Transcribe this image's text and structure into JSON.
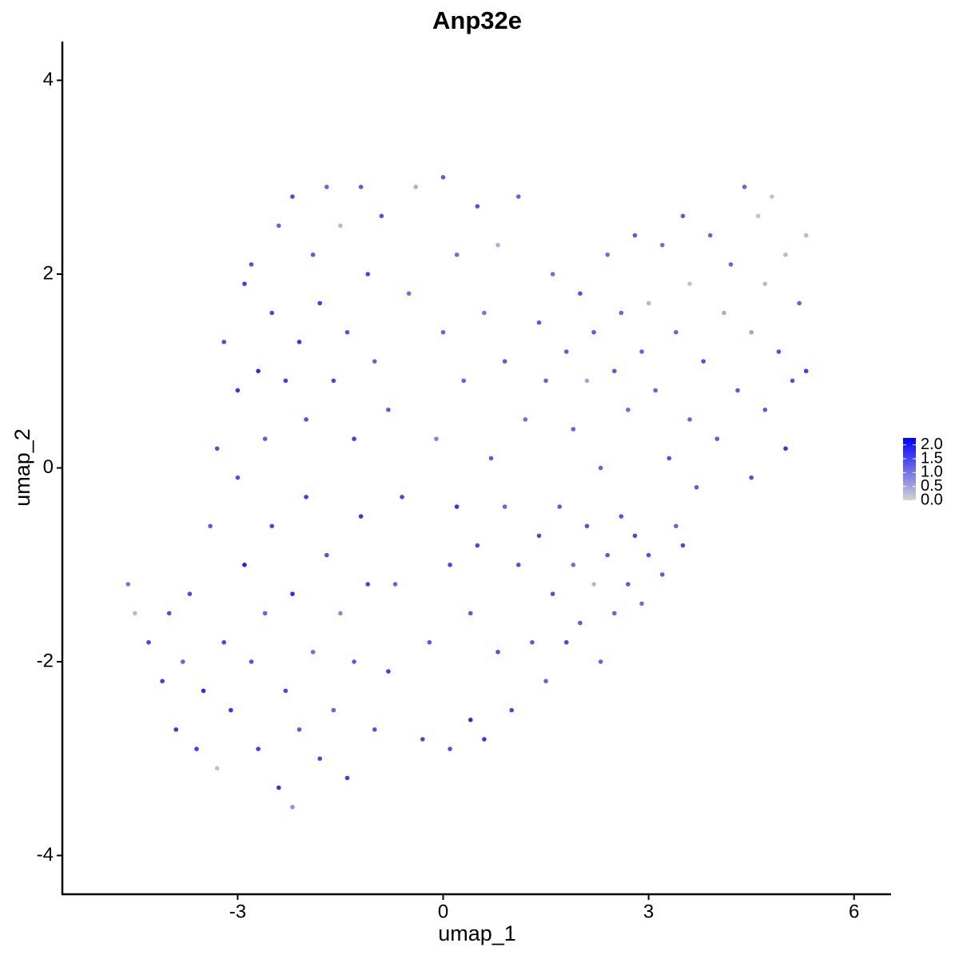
{
  "chart_data": {
    "type": "scatter",
    "title": "Anp32e",
    "x_label": "umap_1",
    "y_label": "umap_2",
    "xlim": [
      -5.56,
      6.54
    ],
    "ylim": [
      -4.4,
      4.4
    ],
    "xticks": [
      -3,
      0,
      3,
      6
    ],
    "yticks": [
      -4,
      -2,
      0,
      2,
      4
    ],
    "color_scale": [
      "#d3d3d3",
      "#0000ff"
    ],
    "colorlim": [
      0,
      2.25
    ],
    "color_ticks": [
      {
        "value": 0,
        "label": "0.0"
      },
      {
        "value": 0.5,
        "label": "0.5"
      },
      {
        "value": 1,
        "label": "1.0"
      },
      {
        "value": 1.5,
        "label": "1.5"
      },
      {
        "value": 2,
        "label": "2.0"
      }
    ],
    "x": [
      -4.6,
      -4.5,
      -4.3,
      -4.1,
      -4.0,
      -3.9,
      -3.8,
      -3.7,
      -3.6,
      -3.5,
      -3.4,
      -3.3,
      -3.2,
      -3.1,
      -3.0,
      -2.9,
      -2.8,
      -2.7,
      -2.6,
      -2.5,
      -2.4,
      -2.3,
      -2.2,
      -2.2,
      -2.1,
      -2.0,
      -1.9,
      -1.8,
      -1.7,
      -1.6,
      -1.5,
      -1.4,
      -1.3,
      -1.2,
      -1.1,
      -1.0,
      -3.3,
      -3.2,
      -3.0,
      -2.9,
      -2.8,
      -2.7,
      -2.6,
      -2.5,
      -2.4,
      -2.3,
      -2.2,
      -2.1,
      -2.0,
      -1.9,
      -1.8,
      -1.7,
      -1.6,
      -1.5,
      -1.4,
      -1.3,
      -1.2,
      -1.1,
      -1.0,
      -0.9,
      -0.8,
      -0.8,
      -0.7,
      -0.6,
      -0.5,
      -0.4,
      -0.3,
      -0.2,
      -0.1,
      0.0,
      0.0,
      0.1,
      0.1,
      0.2,
      0.2,
      0.3,
      0.4,
      0.4,
      0.5,
      0.5,
      0.6,
      0.6,
      0.7,
      0.8,
      0.8,
      0.9,
      0.9,
      1.0,
      1.1,
      1.1,
      1.2,
      1.3,
      1.4,
      1.5,
      1.6,
      1.7,
      1.8,
      1.9,
      2.0,
      2.1,
      2.2,
      2.3,
      2.4,
      2.5,
      2.6,
      2.7,
      2.8,
      2.9,
      3.0,
      3.2,
      3.4,
      3.5,
      1.4,
      1.5,
      1.6,
      1.8,
      1.9,
      2.0,
      2.1,
      2.2,
      2.3,
      2.4,
      2.5,
      2.6,
      2.7,
      2.8,
      2.9,
      3.0,
      3.1,
      3.2,
      3.3,
      3.4,
      3.5,
      3.6,
      3.6,
      3.7,
      3.8,
      3.9,
      4.0,
      4.1,
      4.2,
      4.3,
      4.4,
      4.5,
      4.5,
      4.6,
      4.7,
      4.7,
      4.8,
      4.9,
      5.0,
      5.0,
      5.1,
      5.2,
      5.3,
      5.3
    ],
    "y": [
      -1.2,
      -1.5,
      -1.8,
      -2.2,
      -1.5,
      -2.7,
      -2.0,
      -1.3,
      -2.9,
      -2.3,
      -0.6,
      -3.1,
      -1.8,
      -2.5,
      -0.1,
      -1.0,
      -2.0,
      -2.9,
      -1.5,
      -0.6,
      -3.3,
      -2.3,
      -1.3,
      -3.5,
      -2.7,
      -0.3,
      -1.9,
      -3.0,
      -0.9,
      -2.5,
      -1.5,
      -3.2,
      -2.0,
      -0.5,
      -1.2,
      -2.7,
      0.2,
      1.3,
      0.8,
      1.9,
      2.1,
      1.0,
      0.3,
      1.6,
      2.5,
      0.9,
      2.8,
      1.3,
      0.5,
      2.2,
      1.7,
      2.9,
      0.9,
      2.5,
      1.4,
      0.3,
      2.9,
      2.0,
      1.1,
      2.6,
      0.6,
      -2.1,
      -1.2,
      -0.3,
      1.8,
      2.9,
      -2.8,
      -1.8,
      0.3,
      1.4,
      3.0,
      -2.9,
      -1.0,
      -0.4,
      2.2,
      0.9,
      -2.6,
      -1.5,
      2.7,
      -0.8,
      1.6,
      -2.8,
      0.1,
      -1.9,
      2.3,
      -0.4,
      1.1,
      -2.5,
      -1.0,
      2.8,
      0.5,
      -1.8,
      -0.7,
      -2.2,
      -1.3,
      -0.4,
      -1.8,
      -1.0,
      -1.6,
      -0.6,
      -1.2,
      -2.0,
      -0.9,
      -1.5,
      -0.5,
      -1.2,
      -0.7,
      -1.4,
      -0.9,
      -1.1,
      -0.6,
      -0.8,
      1.5,
      0.9,
      2.0,
      1.2,
      0.4,
      1.8,
      0.9,
      1.4,
      0.0,
      2.2,
      1.0,
      1.6,
      0.6,
      2.4,
      1.2,
      1.7,
      0.8,
      2.3,
      0.1,
      1.4,
      2.6,
      0.5,
      1.9,
      -0.2,
      1.1,
      2.4,
      0.3,
      1.6,
      2.1,
      0.8,
      2.9,
      1.4,
      -0.1,
      2.6,
      0.6,
      1.9,
      2.8,
      1.2,
      0.2,
      2.2,
      0.9,
      1.7,
      2.4,
      1.0
    ],
    "values": [
      1.0,
      0.3,
      1.5,
      1.6,
      1.4,
      1.7,
      1.2,
      1.5,
      1.6,
      1.8,
      1.3,
      0.2,
      1.5,
      1.7,
      1.4,
      1.9,
      1.4,
      1.6,
      1.2,
      1.5,
      1.7,
      1.5,
      1.8,
      0.7,
      1.3,
      1.6,
      1.1,
      1.5,
      1.4,
      1.2,
      0.8,
      1.6,
      1.3,
      1.7,
      1.5,
      1.4,
      1.4,
      1.5,
      1.7,
      1.6,
      1.4,
      1.8,
      1.3,
      1.5,
      1.2,
      1.6,
      1.5,
      1.7,
      1.4,
      1.3,
      1.6,
      1.2,
      1.5,
      0.3,
      1.4,
      1.6,
      1.3,
      1.5,
      1.2,
      1.4,
      1.3,
      1.6,
      1.2,
      1.5,
      1.1,
      0.4,
      1.5,
      1.3,
      0.9,
      1.2,
      1.3,
      1.4,
      1.5,
      1.7,
      1.1,
      1.2,
      1.8,
      1.3,
      1.4,
      1.5,
      1.0,
      1.7,
      1.3,
      1.4,
      0.4,
      1.2,
      1.3,
      1.5,
      1.4,
      1.2,
      1.1,
      1.3,
      1.5,
      1.2,
      1.4,
      1.3,
      1.5,
      1.1,
      1.3,
      1.4,
      0.3,
      1.2,
      1.3,
      1.2,
      1.4,
      1.3,
      1.5,
      1.1,
      1.4,
      1.3,
      1.2,
      1.5,
      1.3,
      1.2,
      1.1,
      1.3,
      1.2,
      1.4,
      0.5,
      1.3,
      1.2,
      1.1,
      1.3,
      1.2,
      1.1,
      1.3,
      1.2,
      0.3,
      1.2,
      1.1,
      1.4,
      1.2,
      1.3,
      1.2,
      0.2,
      1.3,
      1.4,
      1.2,
      1.3,
      0.4,
      1.2,
      1.3,
      1.2,
      0.5,
      1.4,
      0.2,
      1.3,
      0.3,
      0.2,
      1.4,
      1.7,
      0.3,
      1.4,
      1.2,
      0.3,
      1.6
    ]
  }
}
